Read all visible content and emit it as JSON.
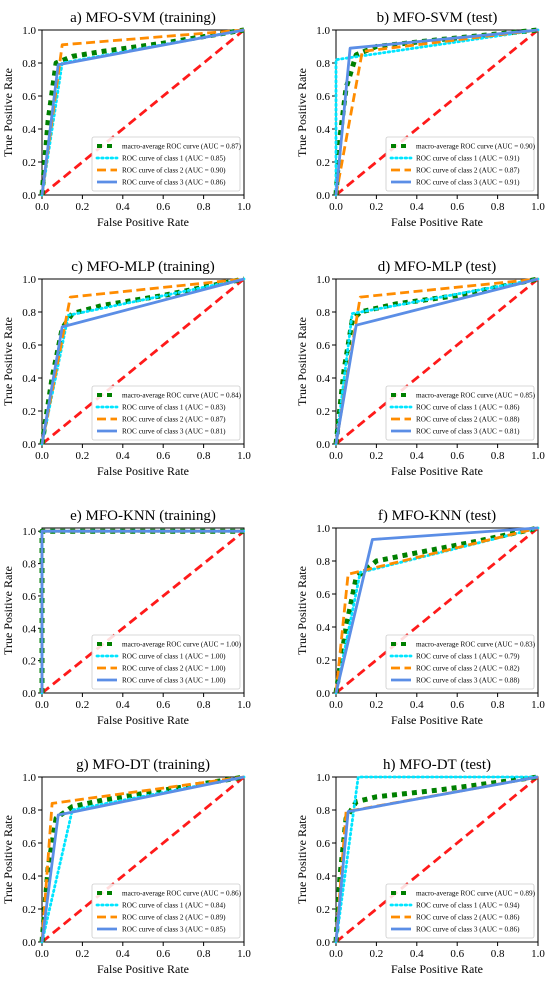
{
  "chart_data": [
    {
      "type": "line",
      "title": "a) MFO-SVM (training)",
      "xlabel": "False Positive Rate",
      "ylabel": "True Positive Rate",
      "xlim": [
        0,
        1
      ],
      "ylim": [
        0,
        1
      ],
      "xticks": [
        "0.0",
        "0.2",
        "0.4",
        "0.6",
        "0.8",
        "1.0"
      ],
      "yticks": [
        "0.0",
        "0.2",
        "0.4",
        "0.6",
        "0.8",
        "1.0"
      ],
      "legend_position": "lower-right",
      "series": [
        {
          "name": "macro-average ROC curve (AUC = 0.87)",
          "color": "#008000",
          "style": "dotted-thick",
          "x": [
            0,
            0.03,
            0.07,
            0.15,
            0.3,
            0.6,
            1
          ],
          "y": [
            0,
            0.45,
            0.8,
            0.84,
            0.87,
            0.92,
            1
          ]
        },
        {
          "name": "ROC curve of class 1 (AUC = 0.85)",
          "color": "#00e5ff",
          "style": "dotted",
          "x": [
            0,
            0.1,
            1
          ],
          "y": [
            0,
            0.8,
            1
          ]
        },
        {
          "name": "ROC curve of class 2 (AUC = 0.90)",
          "color": "#ff8c00",
          "style": "dashed",
          "x": [
            0,
            0.1,
            1
          ],
          "y": [
            0,
            0.91,
            1
          ]
        },
        {
          "name": "ROC curve of class 3 (AUC = 0.86)",
          "color": "#5b8ee6",
          "style": "solid",
          "x": [
            0,
            0.08,
            1
          ],
          "y": [
            0,
            0.79,
            1
          ]
        }
      ]
    },
    {
      "type": "line",
      "title": "b) MFO-SVM (test)",
      "xlabel": "False Positive Rate",
      "ylabel": "True Positive Rate",
      "xlim": [
        0,
        1
      ],
      "ylim": [
        0,
        1
      ],
      "xticks": [
        "0.0",
        "0.2",
        "0.4",
        "0.6",
        "0.8",
        "1.0"
      ],
      "yticks": [
        "0.0",
        "0.2",
        "0.4",
        "0.6",
        "0.8",
        "1.0"
      ],
      "legend_position": "lower-right",
      "series": [
        {
          "name": "macro-average ROC curve (AUC = 0.90)",
          "color": "#008000",
          "style": "dotted-thick",
          "x": [
            0,
            0.02,
            0.05,
            0.1,
            0.2,
            0.5,
            1
          ],
          "y": [
            0,
            0.35,
            0.65,
            0.85,
            0.9,
            0.94,
            1
          ]
        },
        {
          "name": "ROC curve of class 1 (AUC = 0.91)",
          "color": "#00e5ff",
          "style": "dotted",
          "x": [
            0,
            0.0,
            1
          ],
          "y": [
            0,
            0.82,
            1
          ]
        },
        {
          "name": "ROC curve of class 2 (AUC = 0.87)",
          "color": "#ff8c00",
          "style": "dashed",
          "x": [
            0,
            0.13,
            1
          ],
          "y": [
            0,
            0.87,
            1
          ]
        },
        {
          "name": "ROC curve of class 3 (AUC = 0.91)",
          "color": "#5b8ee6",
          "style": "solid",
          "x": [
            0,
            0.07,
            1
          ],
          "y": [
            0,
            0.89,
            1
          ]
        }
      ]
    },
    {
      "type": "line",
      "title": "c) MFO-MLP (training)",
      "xlabel": "False Positive Rate",
      "ylabel": "True Positive Rate",
      "xlim": [
        0,
        1
      ],
      "ylim": [
        0,
        1
      ],
      "xticks": [
        "0.0",
        "0.2",
        "0.4",
        "0.6",
        "0.8",
        "1.0"
      ],
      "yticks": [
        "0.0",
        "0.2",
        "0.4",
        "0.6",
        "0.8",
        "1.0"
      ],
      "legend_position": "lower-right",
      "series": [
        {
          "name": "macro-average ROC curve (AUC = 0.84)",
          "color": "#008000",
          "style": "dotted-thick",
          "x": [
            0,
            0.05,
            0.1,
            0.15,
            0.3,
            0.6,
            1
          ],
          "y": [
            0,
            0.4,
            0.7,
            0.79,
            0.84,
            0.9,
            1
          ]
        },
        {
          "name": "ROC curve of class 1 (AUC = 0.83)",
          "color": "#00e5ff",
          "style": "dotted",
          "x": [
            0,
            0.13,
            1
          ],
          "y": [
            0,
            0.78,
            1
          ]
        },
        {
          "name": "ROC curve of class 2 (AUC = 0.87)",
          "color": "#ff8c00",
          "style": "dashed",
          "x": [
            0,
            0.14,
            1
          ],
          "y": [
            0,
            0.89,
            1
          ]
        },
        {
          "name": "ROC curve of class 3 (AUC = 0.81)",
          "color": "#5b8ee6",
          "style": "solid",
          "x": [
            0,
            0.1,
            1
          ],
          "y": [
            0,
            0.71,
            1
          ]
        }
      ]
    },
    {
      "type": "line",
      "title": "d) MFO-MLP (test)",
      "xlabel": "False Positive Rate",
      "ylabel": "True Positive Rate",
      "xlim": [
        0,
        1
      ],
      "ylim": [
        0,
        1
      ],
      "xticks": [
        "0.0",
        "0.2",
        "0.4",
        "0.6",
        "0.8",
        "1.0"
      ],
      "yticks": [
        "0.0",
        "0.2",
        "0.4",
        "0.6",
        "0.8",
        "1.0"
      ],
      "legend_position": "lower-right",
      "series": [
        {
          "name": "macro-average ROC curve (AUC = 0.85)",
          "color": "#008000",
          "style": "dotted-thick",
          "x": [
            0,
            0.04,
            0.08,
            0.12,
            0.3,
            0.6,
            1
          ],
          "y": [
            0,
            0.45,
            0.75,
            0.8,
            0.85,
            0.9,
            1
          ]
        },
        {
          "name": "ROC curve of class 1 (AUC = 0.86)",
          "color": "#00e5ff",
          "style": "dotted",
          "x": [
            0,
            0.08,
            1
          ],
          "y": [
            0,
            0.79,
            1
          ]
        },
        {
          "name": "ROC curve of class 2 (AUC = 0.88)",
          "color": "#ff8c00",
          "style": "dashed",
          "x": [
            0,
            0.12,
            1
          ],
          "y": [
            0,
            0.89,
            1
          ]
        },
        {
          "name": "ROC curve of class 3 (AUC = 0.81)",
          "color": "#5b8ee6",
          "style": "solid",
          "x": [
            0,
            0.1,
            1
          ],
          "y": [
            0,
            0.72,
            1
          ]
        }
      ]
    },
    {
      "type": "line",
      "title": "e) MFO-KNN (training)",
      "xlabel": "False Positive Rate",
      "ylabel": "True Positive Rate",
      "xlim": [
        0,
        1
      ],
      "ylim": [
        0,
        1.02
      ],
      "xticks": [
        "0.0",
        "0.2",
        "0.4",
        "0.6",
        "0.8",
        "1.0"
      ],
      "yticks": [
        "0.0",
        "0.2",
        "0.4",
        "0.6",
        "0.8",
        "1.0"
      ],
      "legend_position": "lower-right",
      "series": [
        {
          "name": "macro-average ROC curve (AUC = 1.00)",
          "color": "#008000",
          "style": "dotted-thick",
          "x": [
            0,
            0,
            1
          ],
          "y": [
            0,
            1.0,
            1.0
          ]
        },
        {
          "name": "ROC curve of class 1 (AUC = 1.00)",
          "color": "#00e5ff",
          "style": "dotted",
          "x": [
            0,
            0,
            1
          ],
          "y": [
            0,
            1.0,
            1.0
          ]
        },
        {
          "name": "ROC curve of class 2 (AUC = 1.00)",
          "color": "#ff8c00",
          "style": "dashed",
          "x": [
            0,
            0,
            1
          ],
          "y": [
            0,
            1.0,
            1.0
          ]
        },
        {
          "name": "ROC curve of class 3 (AUC = 1.00)",
          "color": "#5b8ee6",
          "style": "solid",
          "x": [
            0,
            0,
            1
          ],
          "y": [
            0,
            1.0,
            1.0
          ]
        }
      ]
    },
    {
      "type": "line",
      "title": "f) MFO-KNN (test)",
      "xlabel": "False Positive Rate",
      "ylabel": "True Positive Rate",
      "xlim": [
        0,
        1
      ],
      "ylim": [
        0,
        1
      ],
      "xticks": [
        "0.0",
        "0.2",
        "0.4",
        "0.6",
        "0.8",
        "1.0"
      ],
      "yticks": [
        "0.0",
        "0.2",
        "0.4",
        "0.6",
        "0.8",
        "1.0"
      ],
      "legend_position": "lower-right",
      "series": [
        {
          "name": "macro-average ROC curve (AUC = 0.83)",
          "color": "#008000",
          "style": "dotted-thick",
          "x": [
            0,
            0.05,
            0.1,
            0.2,
            0.4,
            0.7,
            1
          ],
          "y": [
            0,
            0.4,
            0.7,
            0.8,
            0.85,
            0.92,
            1
          ]
        },
        {
          "name": "ROC curve of class 1 (AUC = 0.79)",
          "color": "#00e5ff",
          "style": "dotted",
          "x": [
            0,
            0.12,
            1
          ],
          "y": [
            0,
            0.73,
            1
          ]
        },
        {
          "name": "ROC curve of class 2 (AUC = 0.82)",
          "color": "#ff8c00",
          "style": "dashed",
          "x": [
            0,
            0.06,
            1
          ],
          "y": [
            0,
            0.72,
            1
          ]
        },
        {
          "name": "ROC curve of class 3 (AUC = 0.88)",
          "color": "#5b8ee6",
          "style": "solid",
          "x": [
            0,
            0.18,
            1
          ],
          "y": [
            0,
            0.93,
            1
          ]
        }
      ]
    },
    {
      "type": "line",
      "title": "g) MFO-DT (training)",
      "xlabel": "False Positive Rate",
      "ylabel": "True Positive Rate",
      "xlim": [
        0,
        1
      ],
      "ylim": [
        0,
        1
      ],
      "xticks": [
        "0.0",
        "0.2",
        "0.4",
        "0.6",
        "0.8",
        "1.0"
      ],
      "yticks": [
        "0.0",
        "0.2",
        "0.4",
        "0.6",
        "0.8",
        "1.0"
      ],
      "legend_position": "lower-right",
      "series": [
        {
          "name": "macro-average ROC curve (AUC = 0.86)",
          "color": "#008000",
          "style": "dotted-thick",
          "x": [
            0,
            0.03,
            0.07,
            0.15,
            0.3,
            0.6,
            1
          ],
          "y": [
            0,
            0.45,
            0.75,
            0.82,
            0.86,
            0.92,
            1
          ]
        },
        {
          "name": "ROC curve of class 1 (AUC = 0.84)",
          "color": "#00e5ff",
          "style": "dotted",
          "x": [
            0,
            0.15,
            1
          ],
          "y": [
            0,
            0.8,
            1
          ]
        },
        {
          "name": "ROC curve of class 2 (AUC = 0.89)",
          "color": "#ff8c00",
          "style": "dashed",
          "x": [
            0,
            0.05,
            1
          ],
          "y": [
            0,
            0.84,
            1
          ]
        },
        {
          "name": "ROC curve of class 3 (AUC = 0.85)",
          "color": "#5b8ee6",
          "style": "solid",
          "x": [
            0,
            0.08,
            1
          ],
          "y": [
            0,
            0.77,
            1
          ]
        }
      ]
    },
    {
      "type": "line",
      "title": "h) MFO-DT (test)",
      "xlabel": "False Positive Rate",
      "ylabel": "True Positive Rate",
      "xlim": [
        0,
        1
      ],
      "ylim": [
        0,
        1
      ],
      "xticks": [
        "0.0",
        "0.2",
        "0.4",
        "0.6",
        "0.8",
        "1.0"
      ],
      "yticks": [
        "0.0",
        "0.2",
        "0.4",
        "0.6",
        "0.8",
        "1.0"
      ],
      "legend_position": "lower-right",
      "series": [
        {
          "name": "macro-average ROC curve (AUC = 0.89)",
          "color": "#008000",
          "style": "dotted-thick",
          "x": [
            0,
            0.02,
            0.05,
            0.1,
            0.2,
            0.5,
            1
          ],
          "y": [
            0,
            0.4,
            0.75,
            0.85,
            0.88,
            0.92,
            1
          ]
        },
        {
          "name": "ROC curve of class 1 (AUC = 0.94)",
          "color": "#00e5ff",
          "style": "dotted",
          "x": [
            0,
            0.11,
            1
          ],
          "y": [
            0,
            1.0,
            1.0
          ]
        },
        {
          "name": "ROC curve of class 2 (AUC = 0.86)",
          "color": "#ff8c00",
          "style": "dashed",
          "x": [
            0,
            0.05,
            1
          ],
          "y": [
            0,
            0.79,
            1
          ]
        },
        {
          "name": "ROC curve of class 3 (AUC = 0.86)",
          "color": "#5b8ee6",
          "style": "solid",
          "x": [
            0,
            0.06,
            1
          ],
          "y": [
            0,
            0.79,
            1
          ]
        }
      ]
    }
  ]
}
